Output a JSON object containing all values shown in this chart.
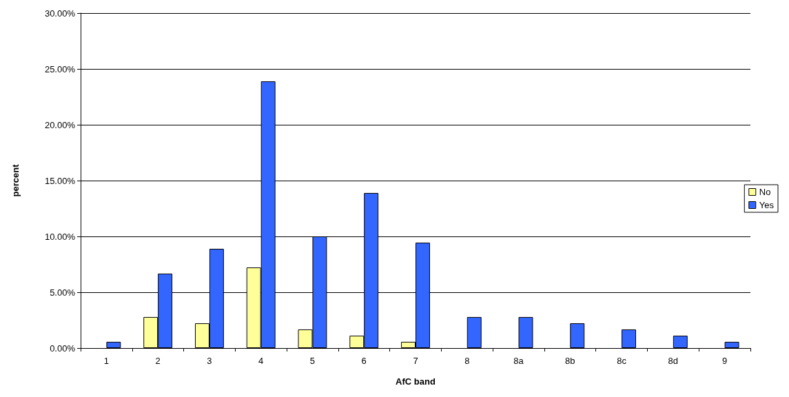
{
  "chart_data": {
    "type": "bar",
    "xlabel": "AfC band",
    "ylabel": "percent",
    "categories": [
      "1",
      "2",
      "3",
      "4",
      "5",
      "6",
      "7",
      "8",
      "8a",
      "8b",
      "8c",
      "8d",
      "9"
    ],
    "series": [
      {
        "name": "No",
        "color": "#ffff99",
        "values": [
          0,
          2.78,
          2.22,
          7.22,
          1.67,
          1.11,
          0.56,
          0,
          0,
          0,
          0,
          0,
          0
        ]
      },
      {
        "name": "Yes",
        "color": "#3366ff",
        "values": [
          0.56,
          6.67,
          8.89,
          23.89,
          10.0,
          13.89,
          9.44,
          2.78,
          2.78,
          2.22,
          1.67,
          1.11,
          0.56
        ]
      }
    ],
    "ylim": [
      0,
      30
    ],
    "yticks": [
      {
        "value": 0,
        "label": "0.00%"
      },
      {
        "value": 5,
        "label": "5.00%"
      },
      {
        "value": 10,
        "label": "10.00%"
      },
      {
        "value": 15,
        "label": "15.00%"
      },
      {
        "value": 20,
        "label": "20.00%"
      },
      {
        "value": 25,
        "label": "25.00%"
      },
      {
        "value": 30,
        "label": "30.00%"
      }
    ],
    "grid": "y",
    "legend": "right"
  }
}
